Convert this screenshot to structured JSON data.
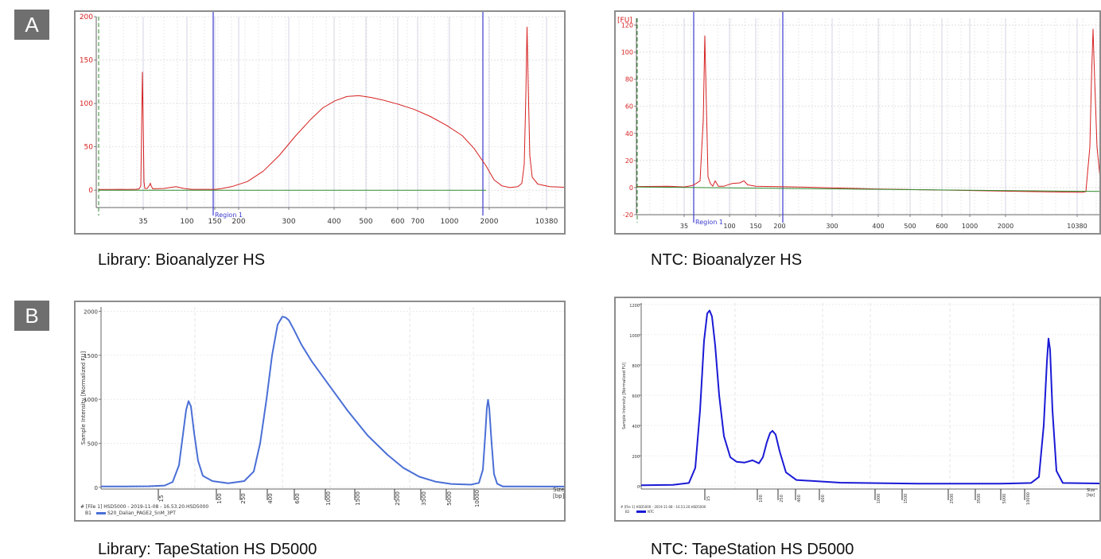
{
  "panels": [
    {
      "label": "A"
    },
    {
      "label": "B"
    }
  ],
  "chart_data": [
    {
      "type": "line",
      "instrument": "Bioanalyzer",
      "caption": "Library: Bioanalyzer HS",
      "y_unit_label": "",
      "ylim": [
        -20,
        200
      ],
      "yticks": [
        0,
        50,
        100,
        150,
        200
      ],
      "xtick_labels": [
        "35",
        "100",
        "150",
        "200",
        "300",
        "400",
        "500",
        "600",
        "700",
        "1000",
        "2000",
        "10380"
      ],
      "region_label": "Region 1",
      "grid": true,
      "series": [
        {
          "color": "#d62020",
          "points": [
            [
              3,
              0.8
            ],
            [
              20,
              0.8
            ],
            [
              30,
              1
            ],
            [
              40,
              0.9
            ],
            [
              50,
              1.1
            ],
            [
              54,
              1.5
            ],
            [
              56,
              5
            ],
            [
              57,
              70
            ],
            [
              58,
              136
            ],
            [
              59,
              80
            ],
            [
              60,
              10
            ],
            [
              61,
              2
            ],
            [
              64,
              2
            ],
            [
              67,
              6
            ],
            [
              68,
              8
            ],
            [
              69,
              5
            ],
            [
              71,
              1.5
            ],
            [
              85,
              2
            ],
            [
              100,
              4
            ],
            [
              110,
              2
            ],
            [
              120,
              1
            ],
            [
              140,
              1
            ],
            [
              150,
              1
            ],
            [
              158,
              2
            ],
            [
              170,
              4
            ],
            [
              190,
              10
            ],
            [
              210,
              22
            ],
            [
              230,
              40
            ],
            [
              250,
              62
            ],
            [
              270,
              82
            ],
            [
              285,
              95
            ],
            [
              300,
              103
            ],
            [
              315,
              108
            ],
            [
              330,
              109
            ],
            [
              345,
              107
            ],
            [
              360,
              104
            ],
            [
              380,
              99
            ],
            [
              400,
              93
            ],
            [
              420,
              85
            ],
            [
              440,
              75
            ],
            [
              460,
              63
            ],
            [
              475,
              48
            ],
            [
              490,
              28
            ],
            [
              500,
              12
            ],
            [
              510,
              5
            ],
            [
              520,
              3
            ],
            [
              530,
              4
            ],
            [
              535,
              8
            ],
            [
              538,
              30
            ],
            [
              540,
              110
            ],
            [
              541.5,
              188
            ],
            [
              543,
              120
            ],
            [
              545,
              40
            ],
            [
              548,
              15
            ],
            [
              555,
              7
            ],
            [
              570,
              4
            ],
            [
              600,
              3
            ]
          ]
        },
        {
          "color": "#2e8b2e",
          "points": [
            [
              3,
              0
            ],
            [
              490,
              0
            ]
          ]
        }
      ]
    },
    {
      "type": "line",
      "instrument": "Bioanalyzer",
      "caption": "NTC: Bioanalyzer HS",
      "y_unit_label": "[FU]",
      "ylim": [
        -20,
        125
      ],
      "yticks": [
        -20,
        0,
        20,
        40,
        60,
        80,
        100,
        120
      ],
      "xtick_labels": [
        "35",
        "100",
        "150",
        "200",
        "300",
        "400",
        "500",
        "600",
        "1000",
        "2000",
        "10380"
      ],
      "region_label": "Region 1",
      "grid": true,
      "series": [
        {
          "color": "#d62020",
          "points": [
            [
              0,
              0.8
            ],
            [
              40,
              1
            ],
            [
              60,
              0.5
            ],
            [
              70,
              1.5
            ],
            [
              75,
              3
            ],
            [
              80,
              5
            ],
            [
              84,
              50
            ],
            [
              86,
              112
            ],
            [
              88,
              60
            ],
            [
              90,
              8
            ],
            [
              93,
              3
            ],
            [
              96,
              1
            ],
            [
              99,
              5
            ],
            [
              101,
              3
            ],
            [
              103,
              1
            ],
            [
              110,
              1
            ],
            [
              120,
              3
            ],
            [
              130,
              3.5
            ],
            [
              135,
              5
            ],
            [
              140,
              2
            ],
            [
              150,
              1
            ],
            [
              200,
              0.5
            ],
            [
              300,
              -1
            ],
            [
              400,
              -2
            ],
            [
              500,
              -3
            ],
            [
              560,
              -3.5
            ],
            [
              565,
              -3
            ],
            [
              570,
              30
            ],
            [
              572,
              80
            ],
            [
              574,
              117
            ],
            [
              576,
              80
            ],
            [
              579,
              30
            ],
            [
              583,
              6
            ],
            [
              590,
              0
            ],
            [
              606,
              -4
            ]
          ]
        },
        {
          "color": "#2e8b2e",
          "points": [
            [
              0,
              0.5
            ],
            [
              604,
              -3
            ]
          ]
        }
      ]
    },
    {
      "type": "line",
      "instrument": "TapeStation",
      "caption": "Library: TapeStation HS D5000",
      "ylabel": "Sample Intensity [Normalized FU]",
      "size_label": "Size",
      "size_unit": "[bp]",
      "ylim": [
        -20,
        2050
      ],
      "yticks": [
        0,
        500,
        1000,
        1500,
        2000
      ],
      "xtick_labels": [
        "15",
        "100",
        "250",
        "400",
        "600",
        "1000",
        "1500",
        "2500",
        "3500",
        "5000",
        "10000"
      ],
      "footer_line1": "# [File 1] HSD5000 - 2019-11-08 - 16.53.20.HSD5000",
      "footer_line2": "B1",
      "footer_sample": "S20_Dalian_PAGE2_5nM_3PT",
      "grid": true,
      "series": [
        {
          "color": "#4a6fd6",
          "points": [
            [
              0,
              10
            ],
            [
              30,
              10
            ],
            [
              60,
              12
            ],
            [
              80,
              20
            ],
            [
              90,
              60
            ],
            [
              98,
              250
            ],
            [
              103,
              600
            ],
            [
              107,
              880
            ],
            [
              110,
              980
            ],
            [
              113,
              920
            ],
            [
              117,
              620
            ],
            [
              122,
              300
            ],
            [
              128,
              130
            ],
            [
              140,
              70
            ],
            [
              160,
              45
            ],
            [
              180,
              70
            ],
            [
              192,
              180
            ],
            [
              200,
              500
            ],
            [
              208,
              1000
            ],
            [
              215,
              1500
            ],
            [
              222,
              1850
            ],
            [
              228,
              1940
            ],
            [
              232,
              1930
            ],
            [
              236,
              1900
            ],
            [
              242,
              1800
            ],
            [
              252,
              1620
            ],
            [
              265,
              1430
            ],
            [
              285,
              1180
            ],
            [
              310,
              870
            ],
            [
              335,
              590
            ],
            [
              360,
              370
            ],
            [
              380,
              220
            ],
            [
              400,
              120
            ],
            [
              420,
              65
            ],
            [
              440,
              38
            ],
            [
              465,
              30
            ],
            [
              475,
              50
            ],
            [
              480,
              200
            ],
            [
              483,
              600
            ],
            [
              485,
              900
            ],
            [
              486.5,
              995
            ],
            [
              488,
              900
            ],
            [
              491,
              500
            ],
            [
              494,
              150
            ],
            [
              498,
              40
            ],
            [
              505,
              10
            ],
            [
              585,
              8
            ]
          ]
        }
      ]
    },
    {
      "type": "line",
      "instrument": "TapeStation",
      "caption": "NTC: TapeStation HS D5000",
      "ylabel": "Sample Intensity [Normalized FU]",
      "size_label": "Size",
      "size_unit": "[bp]",
      "ylim": [
        -20,
        1210
      ],
      "yticks": [
        0,
        200,
        400,
        600,
        800,
        1000,
        1200
      ],
      "xtick_labels": [
        "15",
        "100",
        "250",
        "400",
        "600",
        "1000",
        "1500",
        "2500",
        "3500",
        "5000",
        "10000"
      ],
      "footer_line1": "# [File 1] HSD5000 - 2019-11-08 - 16.53.20.HSD5000",
      "footer_line2": "B2",
      "footer_sample": "NTC",
      "grid": true,
      "series": [
        {
          "color": "#1a1ad6",
          "points": [
            [
              0,
              5
            ],
            [
              40,
              8
            ],
            [
              60,
              20
            ],
            [
              68,
              120
            ],
            [
              74,
              500
            ],
            [
              79,
              960
            ],
            [
              83,
              1140
            ],
            [
              86,
              1160
            ],
            [
              89,
              1120
            ],
            [
              93,
              930
            ],
            [
              98,
              600
            ],
            [
              104,
              330
            ],
            [
              112,
              190
            ],
            [
              120,
              160
            ],
            [
              130,
              155
            ],
            [
              140,
              170
            ],
            [
              148,
              150
            ],
            [
              153,
              190
            ],
            [
              158,
              290
            ],
            [
              162,
              350
            ],
            [
              165,
              365
            ],
            [
              169,
              340
            ],
            [
              174,
              230
            ],
            [
              182,
              90
            ],
            [
              195,
              40
            ],
            [
              250,
              22
            ],
            [
              350,
              15
            ],
            [
              450,
              15
            ],
            [
              490,
              20
            ],
            [
              500,
              60
            ],
            [
              506,
              400
            ],
            [
              510,
              820
            ],
            [
              512,
              975
            ],
            [
              514,
              900
            ],
            [
              517,
              500
            ],
            [
              522,
              100
            ],
            [
              530,
              20
            ],
            [
              606,
              15
            ]
          ]
        }
      ]
    }
  ]
}
